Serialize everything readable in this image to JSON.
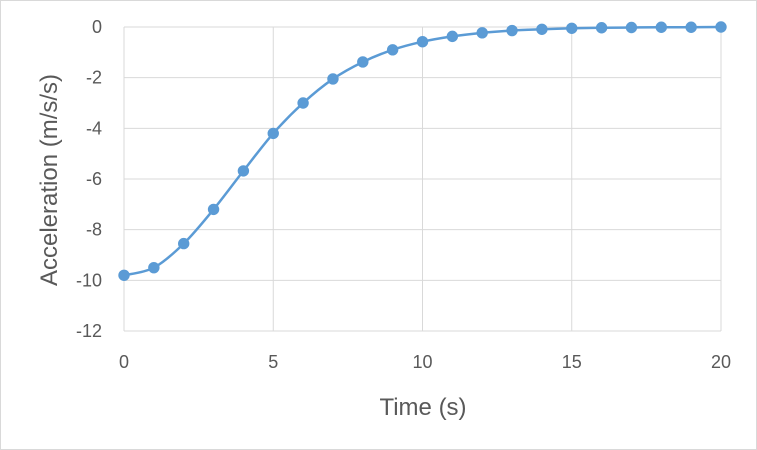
{
  "chart_data": {
    "type": "scatter",
    "title": "",
    "xlabel": "Time (s)",
    "ylabel": "Acceleration (m/s/s)",
    "xlim": [
      0,
      20
    ],
    "ylim": [
      -12,
      0
    ],
    "xticks": [
      0,
      5,
      10,
      15,
      20
    ],
    "yticks": [
      0,
      -2,
      -4,
      -6,
      -8,
      -10,
      -12
    ],
    "grid": true,
    "legend": "none",
    "series": [
      {
        "color": "#5b9bd5",
        "marker": "circle",
        "line": "smooth",
        "x": [
          0,
          1,
          2,
          3,
          4,
          5,
          6,
          7,
          8,
          9,
          10,
          11,
          12,
          13,
          14,
          15,
          16,
          17,
          18,
          19,
          20
        ],
        "y": [
          -9.8,
          -9.5,
          -8.55,
          -7.2,
          -5.68,
          -4.2,
          -3.0,
          -2.05,
          -1.38,
          -0.9,
          -0.58,
          -0.37,
          -0.23,
          -0.14,
          -0.09,
          -0.05,
          -0.03,
          -0.02,
          -0.01,
          -0.01,
          0
        ]
      }
    ]
  }
}
